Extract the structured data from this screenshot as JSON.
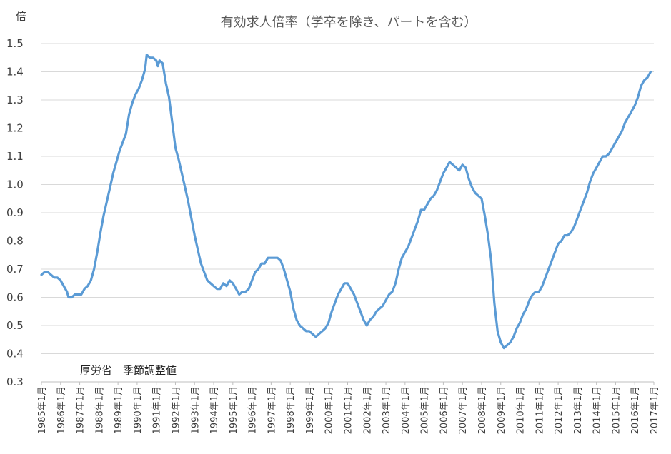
{
  "chart_data": {
    "type": "line",
    "title": "有効求人倍率（学卒を除き、パートを含む）",
    "ylabel": "倍",
    "annotation": "厚労省　季節調整値",
    "ylim": [
      0.3,
      1.5
    ],
    "ytick_step": 0.1,
    "ytick_labels": [
      "1.5",
      "1.4",
      "1.3",
      "1.2",
      "1.1",
      "1.0",
      "0.9",
      "0.8",
      "0.7",
      "0.6",
      "0.5",
      "0.4",
      "0.3"
    ],
    "xlim": [
      "1985-01",
      "2017-01"
    ],
    "xtick_labels": [
      "1985年1月",
      "1986年1月",
      "1987年1月",
      "1988年1月",
      "1989年1月",
      "1990年1月",
      "1991年1月",
      "1992年1月",
      "1993年1月",
      "1994年1月",
      "1995年1月",
      "1996年1月",
      "1997年1月",
      "1998年1月",
      "1999年1月",
      "2000年1月",
      "2001年1月",
      "2002年1月",
      "2003年1月",
      "2004年1月",
      "2005年1月",
      "2006年1月",
      "2007年1月",
      "2008年1月",
      "2009年1月",
      "2010年1月",
      "2011年1月",
      "2012年1月",
      "2013年1月",
      "2014年1月",
      "2015年1月",
      "2016年1月",
      "2017年1月"
    ],
    "grid": true,
    "line_color": "#5b9bd5",
    "series": [
      {
        "name": "",
        "points": [
          [
            "1985-01",
            0.68
          ],
          [
            "1985-03",
            0.69
          ],
          [
            "1985-05",
            0.69
          ],
          [
            "1985-07",
            0.68
          ],
          [
            "1985-09",
            0.67
          ],
          [
            "1985-11",
            0.67
          ],
          [
            "1986-01",
            0.66
          ],
          [
            "1986-03",
            0.64
          ],
          [
            "1986-05",
            0.62
          ],
          [
            "1986-06",
            0.6
          ],
          [
            "1986-08",
            0.6
          ],
          [
            "1986-10",
            0.61
          ],
          [
            "1986-12",
            0.61
          ],
          [
            "1987-02",
            0.61
          ],
          [
            "1987-04",
            0.63
          ],
          [
            "1987-06",
            0.64
          ],
          [
            "1987-08",
            0.66
          ],
          [
            "1987-10",
            0.7
          ],
          [
            "1987-12",
            0.76
          ],
          [
            "1988-02",
            0.83
          ],
          [
            "1988-04",
            0.89
          ],
          [
            "1988-06",
            0.94
          ],
          [
            "1988-08",
            0.99
          ],
          [
            "1988-10",
            1.04
          ],
          [
            "1988-12",
            1.08
          ],
          [
            "1989-02",
            1.12
          ],
          [
            "1989-04",
            1.15
          ],
          [
            "1989-06",
            1.18
          ],
          [
            "1989-08",
            1.25
          ],
          [
            "1989-10",
            1.29
          ],
          [
            "1989-12",
            1.32
          ],
          [
            "1990-02",
            1.34
          ],
          [
            "1990-04",
            1.37
          ],
          [
            "1990-06",
            1.41
          ],
          [
            "1990-07",
            1.46
          ],
          [
            "1990-09",
            1.45
          ],
          [
            "1990-11",
            1.45
          ],
          [
            "1991-01",
            1.44
          ],
          [
            "1991-02",
            1.42
          ],
          [
            "1991-03",
            1.44
          ],
          [
            "1991-05",
            1.43
          ],
          [
            "1991-07",
            1.36
          ],
          [
            "1991-09",
            1.31
          ],
          [
            "1991-11",
            1.22
          ],
          [
            "1992-01",
            1.13
          ],
          [
            "1992-03",
            1.09
          ],
          [
            "1992-05",
            1.04
          ],
          [
            "1992-07",
            0.99
          ],
          [
            "1992-09",
            0.94
          ],
          [
            "1992-11",
            0.88
          ],
          [
            "1993-01",
            0.82
          ],
          [
            "1993-03",
            0.77
          ],
          [
            "1993-05",
            0.72
          ],
          [
            "1993-07",
            0.69
          ],
          [
            "1993-09",
            0.66
          ],
          [
            "1993-11",
            0.65
          ],
          [
            "1994-01",
            0.64
          ],
          [
            "1994-03",
            0.63
          ],
          [
            "1994-05",
            0.63
          ],
          [
            "1994-07",
            0.65
          ],
          [
            "1994-09",
            0.64
          ],
          [
            "1994-11",
            0.66
          ],
          [
            "1995-01",
            0.65
          ],
          [
            "1995-03",
            0.63
          ],
          [
            "1995-05",
            0.61
          ],
          [
            "1995-07",
            0.62
          ],
          [
            "1995-09",
            0.62
          ],
          [
            "1995-11",
            0.63
          ],
          [
            "1996-01",
            0.66
          ],
          [
            "1996-03",
            0.69
          ],
          [
            "1996-05",
            0.7
          ],
          [
            "1996-07",
            0.72
          ],
          [
            "1996-09",
            0.72
          ],
          [
            "1996-11",
            0.74
          ],
          [
            "1997-01",
            0.74
          ],
          [
            "1997-03",
            0.74
          ],
          [
            "1997-05",
            0.74
          ],
          [
            "1997-07",
            0.73
          ],
          [
            "1997-09",
            0.7
          ],
          [
            "1997-11",
            0.66
          ],
          [
            "1998-01",
            0.62
          ],
          [
            "1998-03",
            0.56
          ],
          [
            "1998-05",
            0.52
          ],
          [
            "1998-07",
            0.5
          ],
          [
            "1998-09",
            0.49
          ],
          [
            "1998-11",
            0.48
          ],
          [
            "1999-01",
            0.48
          ],
          [
            "1999-03",
            0.47
          ],
          [
            "1999-05",
            0.46
          ],
          [
            "1999-07",
            0.47
          ],
          [
            "1999-09",
            0.48
          ],
          [
            "1999-11",
            0.49
          ],
          [
            "2000-01",
            0.51
          ],
          [
            "2000-03",
            0.55
          ],
          [
            "2000-05",
            0.58
          ],
          [
            "2000-07",
            0.61
          ],
          [
            "2000-09",
            0.63
          ],
          [
            "2000-11",
            0.65
          ],
          [
            "2001-01",
            0.65
          ],
          [
            "2001-03",
            0.63
          ],
          [
            "2001-05",
            0.61
          ],
          [
            "2001-07",
            0.58
          ],
          [
            "2001-09",
            0.55
          ],
          [
            "2001-11",
            0.52
          ],
          [
            "2002-01",
            0.5
          ],
          [
            "2002-03",
            0.52
          ],
          [
            "2002-05",
            0.53
          ],
          [
            "2002-07",
            0.55
          ],
          [
            "2002-09",
            0.56
          ],
          [
            "2002-11",
            0.57
          ],
          [
            "2003-01",
            0.59
          ],
          [
            "2003-03",
            0.61
          ],
          [
            "2003-05",
            0.62
          ],
          [
            "2003-07",
            0.65
          ],
          [
            "2003-09",
            0.7
          ],
          [
            "2003-11",
            0.74
          ],
          [
            "2004-01",
            0.76
          ],
          [
            "2004-03",
            0.78
          ],
          [
            "2004-05",
            0.81
          ],
          [
            "2004-07",
            0.84
          ],
          [
            "2004-09",
            0.87
          ],
          [
            "2004-11",
            0.91
          ],
          [
            "2005-01",
            0.91
          ],
          [
            "2005-03",
            0.93
          ],
          [
            "2005-05",
            0.95
          ],
          [
            "2005-07",
            0.96
          ],
          [
            "2005-09",
            0.98
          ],
          [
            "2005-11",
            1.01
          ],
          [
            "2006-01",
            1.04
          ],
          [
            "2006-03",
            1.06
          ],
          [
            "2006-05",
            1.08
          ],
          [
            "2006-07",
            1.07
          ],
          [
            "2006-09",
            1.06
          ],
          [
            "2006-11",
            1.05
          ],
          [
            "2007-01",
            1.07
          ],
          [
            "2007-03",
            1.06
          ],
          [
            "2007-05",
            1.02
          ],
          [
            "2007-07",
            0.99
          ],
          [
            "2007-09",
            0.97
          ],
          [
            "2007-11",
            0.96
          ],
          [
            "2008-01",
            0.95
          ],
          [
            "2008-03",
            0.89
          ],
          [
            "2008-05",
            0.82
          ],
          [
            "2008-07",
            0.73
          ],
          [
            "2008-09",
            0.58
          ],
          [
            "2008-11",
            0.48
          ],
          [
            "2009-01",
            0.44
          ],
          [
            "2009-03",
            0.42
          ],
          [
            "2009-05",
            0.43
          ],
          [
            "2009-07",
            0.44
          ],
          [
            "2009-09",
            0.46
          ],
          [
            "2009-11",
            0.49
          ],
          [
            "2010-01",
            0.51
          ],
          [
            "2010-03",
            0.54
          ],
          [
            "2010-05",
            0.56
          ],
          [
            "2010-07",
            0.59
          ],
          [
            "2010-09",
            0.61
          ],
          [
            "2010-11",
            0.62
          ],
          [
            "2011-01",
            0.62
          ],
          [
            "2011-03",
            0.64
          ],
          [
            "2011-05",
            0.67
          ],
          [
            "2011-07",
            0.7
          ],
          [
            "2011-09",
            0.73
          ],
          [
            "2011-11",
            0.76
          ],
          [
            "2012-01",
            0.79
          ],
          [
            "2012-03",
            0.8
          ],
          [
            "2012-05",
            0.82
          ],
          [
            "2012-07",
            0.82
          ],
          [
            "2012-09",
            0.83
          ],
          [
            "2012-11",
            0.85
          ],
          [
            "2013-01",
            0.88
          ],
          [
            "2013-03",
            0.91
          ],
          [
            "2013-05",
            0.94
          ],
          [
            "2013-07",
            0.97
          ],
          [
            "2013-09",
            1.01
          ],
          [
            "2013-11",
            1.04
          ],
          [
            "2014-01",
            1.06
          ],
          [
            "2014-03",
            1.08
          ],
          [
            "2014-05",
            1.1
          ],
          [
            "2014-07",
            1.1
          ],
          [
            "2014-09",
            1.11
          ],
          [
            "2014-11",
            1.13
          ],
          [
            "2015-01",
            1.15
          ],
          [
            "2015-03",
            1.17
          ],
          [
            "2015-05",
            1.19
          ],
          [
            "2015-07",
            1.22
          ],
          [
            "2015-09",
            1.24
          ],
          [
            "2015-11",
            1.26
          ],
          [
            "2016-01",
            1.28
          ],
          [
            "2016-03",
            1.31
          ],
          [
            "2016-05",
            1.35
          ],
          [
            "2016-07",
            1.37
          ],
          [
            "2016-09",
            1.38
          ],
          [
            "2016-11",
            1.4
          ]
        ]
      }
    ]
  }
}
